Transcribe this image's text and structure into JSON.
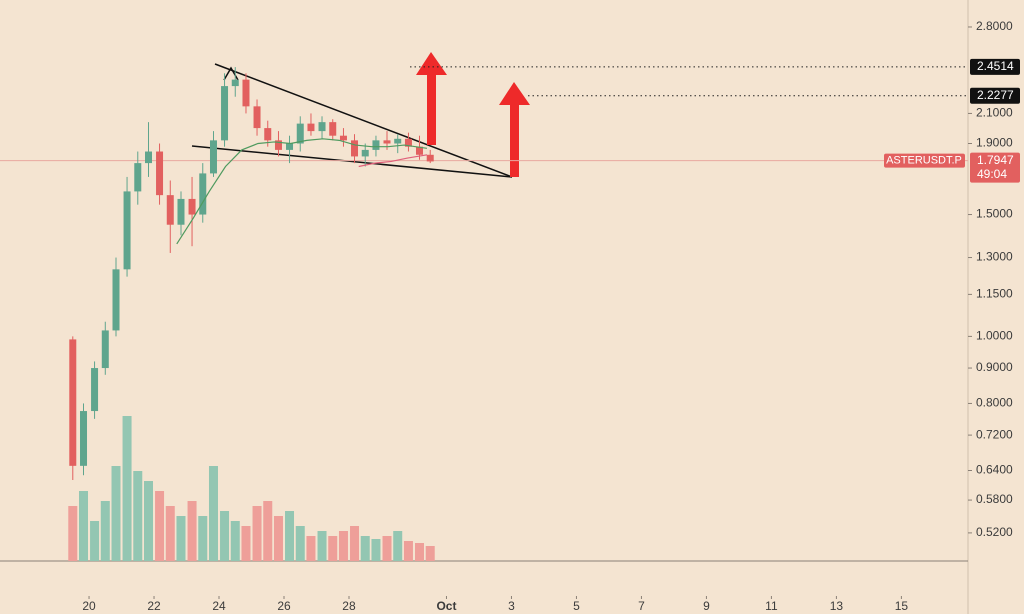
{
  "chart_data": {
    "type": "candlestick",
    "log_scale": true,
    "ylim": [
      0.43,
      3.063
    ],
    "xlim": [
      17.26,
      47.05
    ],
    "yticks": [
      {
        "value": 2.8,
        "label": "2.8000"
      },
      {
        "value": 2.1,
        "label": "2.1000"
      },
      {
        "value": 1.9,
        "label": "1.9000"
      },
      {
        "value": 1.5,
        "label": "1.5000"
      },
      {
        "value": 1.3,
        "label": "1.3000"
      },
      {
        "value": 1.15,
        "label": "1.1500"
      },
      {
        "value": 1.0,
        "label": "1.0000"
      },
      {
        "value": 0.9,
        "label": "0.9000"
      },
      {
        "value": 0.8,
        "label": "0.8000"
      },
      {
        "value": 0.72,
        "label": "0.7200"
      },
      {
        "value": 0.64,
        "label": "0.6400"
      },
      {
        "value": 0.58,
        "label": "0.5800"
      },
      {
        "value": 0.52,
        "label": "0.5200"
      }
    ],
    "xticks": [
      20,
      22,
      24,
      26,
      28,
      {
        "value": 31,
        "label": "Oct"
      },
      {
        "value": 33,
        "label": "3"
      },
      {
        "value": 35,
        "label": "5"
      },
      {
        "value": 37,
        "label": "7"
      },
      {
        "value": 39,
        "label": "9"
      },
      {
        "value": 41,
        "label": "11"
      },
      {
        "value": 43,
        "label": "13"
      },
      {
        "value": 45,
        "label": "15"
      }
    ],
    "up_color": "#5fa58d",
    "down_color": "#e2605f",
    "volume_up_color": "#93c6b2",
    "volume_down_color": "#ee9f99",
    "candles": {
      "x": [
        19.5,
        19.83,
        20.17,
        20.5,
        20.83,
        21.17,
        21.5,
        21.83,
        22.17,
        22.5,
        22.83,
        23.17,
        23.5,
        23.83,
        24.17,
        24.5,
        24.83,
        25.17,
        25.5,
        25.83,
        26.17,
        26.5,
        26.83,
        27.17,
        27.5,
        27.83,
        28.17,
        28.5,
        28.83,
        29.17,
        29.5,
        29.83,
        30.17,
        30.5
      ],
      "open": [
        0.99,
        0.65,
        0.78,
        0.9,
        1.02,
        1.25,
        1.62,
        1.78,
        1.85,
        1.6,
        1.45,
        1.58,
        1.5,
        1.72,
        1.92,
        2.3,
        2.35,
        2.15,
        2.0,
        1.92,
        1.86,
        1.9,
        2.03,
        1.98,
        2.04,
        1.95,
        1.92,
        1.82,
        1.86,
        1.92,
        1.9,
        1.93,
        1.88,
        1.83
      ],
      "high": [
        1.0,
        0.8,
        0.92,
        1.05,
        1.3,
        1.7,
        1.85,
        2.04,
        1.9,
        1.68,
        1.62,
        1.7,
        1.78,
        1.98,
        2.4,
        2.45,
        2.4,
        2.2,
        2.05,
        1.98,
        1.95,
        2.08,
        2.1,
        2.08,
        2.06,
        2.0,
        1.96,
        1.9,
        1.95,
        1.98,
        1.96,
        1.97,
        1.95,
        1.86
      ],
      "low": [
        0.62,
        0.63,
        0.76,
        0.88,
        1.0,
        1.22,
        1.55,
        1.7,
        1.55,
        1.32,
        1.4,
        1.35,
        1.46,
        1.7,
        1.88,
        2.22,
        2.1,
        1.95,
        1.88,
        1.82,
        1.78,
        1.85,
        1.95,
        1.93,
        1.92,
        1.88,
        1.78,
        1.76,
        1.82,
        1.86,
        1.84,
        1.85,
        1.8,
        1.78
      ],
      "close": [
        0.65,
        0.78,
        0.9,
        1.02,
        1.25,
        1.62,
        1.78,
        1.85,
        1.6,
        1.45,
        1.58,
        1.5,
        1.72,
        1.92,
        2.3,
        2.35,
        2.15,
        2.0,
        1.92,
        1.86,
        1.9,
        2.03,
        1.98,
        2.04,
        1.95,
        1.92,
        1.82,
        1.86,
        1.92,
        1.9,
        1.93,
        1.88,
        1.83,
        1.79
      ],
      "volume": [
        55,
        70,
        40,
        60,
        95,
        145,
        90,
        80,
        70,
        55,
        45,
        60,
        45,
        95,
        50,
        40,
        35,
        55,
        60,
        45,
        50,
        35,
        25,
        30,
        25,
        30,
        35,
        25,
        22,
        25,
        30,
        20,
        18,
        15
      ]
    },
    "volume_lim": [
      0,
      150
    ],
    "lines": [
      {
        "color": "#4f9a5f",
        "x": [
          22.7,
          23.2,
          23.7,
          24.2,
          24.7,
          25.2,
          25.7,
          26.2,
          26.7,
          27.2,
          27.7,
          28.2,
          28.7,
          29.2,
          29.7,
          30.4
        ],
        "values": [
          1.36,
          1.48,
          1.62,
          1.76,
          1.86,
          1.9,
          1.91,
          1.9,
          1.92,
          1.93,
          1.92,
          1.89,
          1.88,
          1.88,
          1.89,
          1.87
        ]
      },
      {
        "color": "#e0607a",
        "x": [
          28.3,
          28.8,
          29.3,
          29.8,
          30.4
        ],
        "values": [
          1.76,
          1.78,
          1.79,
          1.81,
          1.83
        ]
      }
    ],
    "levels": [
      2.4514,
      2.2277
    ],
    "last_price": 1.7947,
    "symbol": "ASTERUSDT.P",
    "countdown": "49:04"
  }
}
